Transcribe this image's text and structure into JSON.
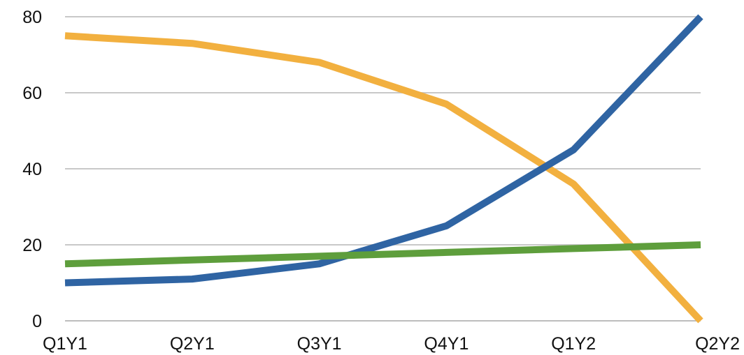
{
  "chart_data": {
    "type": "line",
    "title": "",
    "xlabel": "",
    "ylabel": "",
    "categories": [
      "Q1Y1",
      "Q2Y1",
      "Q3Y1",
      "Q4Y1",
      "Q1Y2",
      "Q2Y2"
    ],
    "ylim": [
      0,
      80
    ],
    "yticks": [
      "0",
      "20",
      "40",
      "60",
      "80"
    ],
    "grid": true,
    "legend": "none",
    "series": [
      {
        "color": "#f2b03f",
        "values": [
          75,
          73,
          68,
          57,
          36,
          0
        ]
      },
      {
        "color": "#2f64a3",
        "values": [
          10,
          11,
          15,
          25,
          45,
          80
        ]
      },
      {
        "color": "#5e9e3c",
        "values": [
          15,
          16,
          17,
          18,
          19,
          20
        ]
      }
    ]
  }
}
